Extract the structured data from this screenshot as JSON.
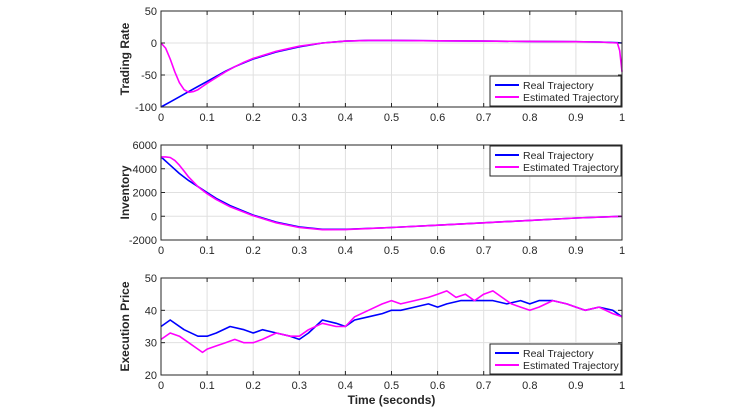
{
  "chart_data": [
    {
      "type": "line",
      "ylabel": "Trading Rate",
      "xlim": [
        0,
        1
      ],
      "ylim": [
        -100,
        50
      ],
      "yticks": [
        -100,
        -50,
        0,
        50
      ],
      "ytick_labels": [
        "-100",
        "-50",
        "0",
        "50"
      ],
      "grid": true,
      "legend_position": "bottom-right",
      "series": [
        {
          "name": "Real Trajectory",
          "color": "#0000ff",
          "x": [
            0,
            0.02,
            0.04,
            0.06,
            0.08,
            0.1,
            0.12,
            0.14,
            0.16,
            0.18,
            0.2,
            0.25,
            0.3,
            0.35,
            0.4,
            0.45,
            0.5,
            0.6,
            0.7,
            0.8,
            0.9,
            0.95,
            0.99,
            1.0
          ],
          "y": [
            -100,
            -92,
            -84,
            -76,
            -68,
            -60,
            -52,
            -44,
            -37,
            -31,
            -25,
            -14,
            -6,
            0,
            3,
            4,
            4,
            3.5,
            3,
            2.5,
            2,
            1.5,
            0.5,
            0
          ]
        },
        {
          "name": "Estimated Trajectory",
          "color": "#ff00ff",
          "x": [
            0,
            0.01,
            0.02,
            0.03,
            0.04,
            0.05,
            0.06,
            0.07,
            0.08,
            0.09,
            0.1,
            0.12,
            0.14,
            0.16,
            0.18,
            0.2,
            0.25,
            0.3,
            0.35,
            0.4,
            0.45,
            0.5,
            0.6,
            0.7,
            0.8,
            0.9,
            0.95,
            0.99,
            0.995,
            1.0
          ],
          "y": [
            0,
            -8,
            -25,
            -45,
            -62,
            -73,
            -77,
            -76,
            -73,
            -68,
            -63,
            -54,
            -45,
            -37,
            -30,
            -24,
            -13,
            -5,
            0,
            3,
            4,
            4,
            3.5,
            3,
            2.5,
            2,
            1.5,
            0,
            -12,
            -45
          ]
        }
      ]
    },
    {
      "type": "line",
      "ylabel": "Inventory",
      "xlim": [
        0,
        1
      ],
      "ylim": [
        -2000,
        6000
      ],
      "yticks": [
        -2000,
        0,
        2000,
        4000,
        6000
      ],
      "ytick_labels": [
        "-2000",
        "0",
        "2000",
        "4000",
        "6000"
      ],
      "grid": true,
      "legend_position": "top-right",
      "series": [
        {
          "name": "Real Trajectory",
          "color": "#0000ff",
          "x": [
            0,
            0.02,
            0.04,
            0.06,
            0.08,
            0.1,
            0.12,
            0.15,
            0.2,
            0.25,
            0.3,
            0.35,
            0.4,
            0.5,
            0.6,
            0.7,
            0.8,
            0.9,
            1.0
          ],
          "y": [
            5000,
            4300,
            3600,
            3000,
            2500,
            2000,
            1500,
            900,
            100,
            -500,
            -900,
            -1100,
            -1100,
            -950,
            -750,
            -550,
            -350,
            -150,
            0
          ]
        },
        {
          "name": "Estimated Trajectory",
          "color": "#ff00ff",
          "x": [
            0,
            0.01,
            0.02,
            0.03,
            0.04,
            0.05,
            0.06,
            0.08,
            0.1,
            0.12,
            0.15,
            0.2,
            0.25,
            0.3,
            0.35,
            0.4,
            0.5,
            0.6,
            0.7,
            0.8,
            0.9,
            1.0
          ],
          "y": [
            5000,
            5000,
            4950,
            4700,
            4300,
            3800,
            3300,
            2500,
            1900,
            1400,
            800,
            50,
            -550,
            -950,
            -1130,
            -1120,
            -950,
            -750,
            -550,
            -350,
            -150,
            0
          ]
        }
      ]
    },
    {
      "type": "line",
      "ylabel": "Execution Price",
      "xlabel": "Time (seconds)",
      "xlim": [
        0,
        1
      ],
      "ylim": [
        20,
        50
      ],
      "yticks": [
        20,
        30,
        40,
        50
      ],
      "ytick_labels": [
        "20",
        "30",
        "40",
        "50"
      ],
      "grid": true,
      "legend_position": "bottom-right",
      "series": [
        {
          "name": "Real Trajectory",
          "color": "#0000ff",
          "x": [
            0,
            0.02,
            0.05,
            0.08,
            0.1,
            0.12,
            0.15,
            0.18,
            0.2,
            0.22,
            0.25,
            0.28,
            0.3,
            0.32,
            0.35,
            0.38,
            0.4,
            0.42,
            0.45,
            0.48,
            0.5,
            0.52,
            0.55,
            0.58,
            0.6,
            0.62,
            0.65,
            0.68,
            0.7,
            0.72,
            0.75,
            0.78,
            0.8,
            0.82,
            0.85,
            0.88,
            0.9,
            0.92,
            0.95,
            0.98,
            1.0
          ],
          "y": [
            35,
            37,
            34,
            32,
            32,
            33,
            35,
            34,
            33,
            34,
            33,
            32,
            31,
            33,
            37,
            36,
            35,
            37,
            38,
            39,
            40,
            40,
            41,
            42,
            41,
            42,
            43,
            43,
            43,
            43,
            42,
            43,
            42,
            43,
            43,
            42,
            41,
            40,
            41,
            40,
            38
          ]
        },
        {
          "name": "Estimated Trajectory",
          "color": "#ff00ff",
          "x": [
            0,
            0.02,
            0.04,
            0.06,
            0.08,
            0.09,
            0.1,
            0.12,
            0.14,
            0.16,
            0.18,
            0.2,
            0.22,
            0.25,
            0.28,
            0.3,
            0.32,
            0.35,
            0.38,
            0.4,
            0.42,
            0.45,
            0.48,
            0.5,
            0.52,
            0.55,
            0.58,
            0.6,
            0.62,
            0.64,
            0.66,
            0.68,
            0.7,
            0.72,
            0.74,
            0.76,
            0.78,
            0.8,
            0.82,
            0.85,
            0.88,
            0.9,
            0.92,
            0.95,
            0.98,
            1.0
          ],
          "y": [
            31,
            33,
            32,
            30,
            28,
            27,
            28,
            29,
            30,
            31,
            30,
            30,
            31,
            33,
            32,
            32,
            34,
            36,
            35,
            35,
            38,
            40,
            42,
            43,
            42,
            43,
            44,
            45,
            46,
            44,
            45,
            43,
            45,
            46,
            44,
            42,
            41,
            40,
            41,
            43,
            42,
            41,
            40,
            41,
            39,
            38
          ]
        }
      ]
    }
  ],
  "x_ticks": [
    0,
    0.1,
    0.2,
    0.3,
    0.4,
    0.5,
    0.6,
    0.7,
    0.8,
    0.9,
    1
  ],
  "x_tick_labels": [
    "0",
    "0.1",
    "0.2",
    "0.3",
    "0.4",
    "0.5",
    "0.6",
    "0.7",
    "0.8",
    "0.9",
    "1"
  ],
  "legend": {
    "real_label": "Real Trajectory",
    "estimated_label": "Estimated Trajectory"
  }
}
